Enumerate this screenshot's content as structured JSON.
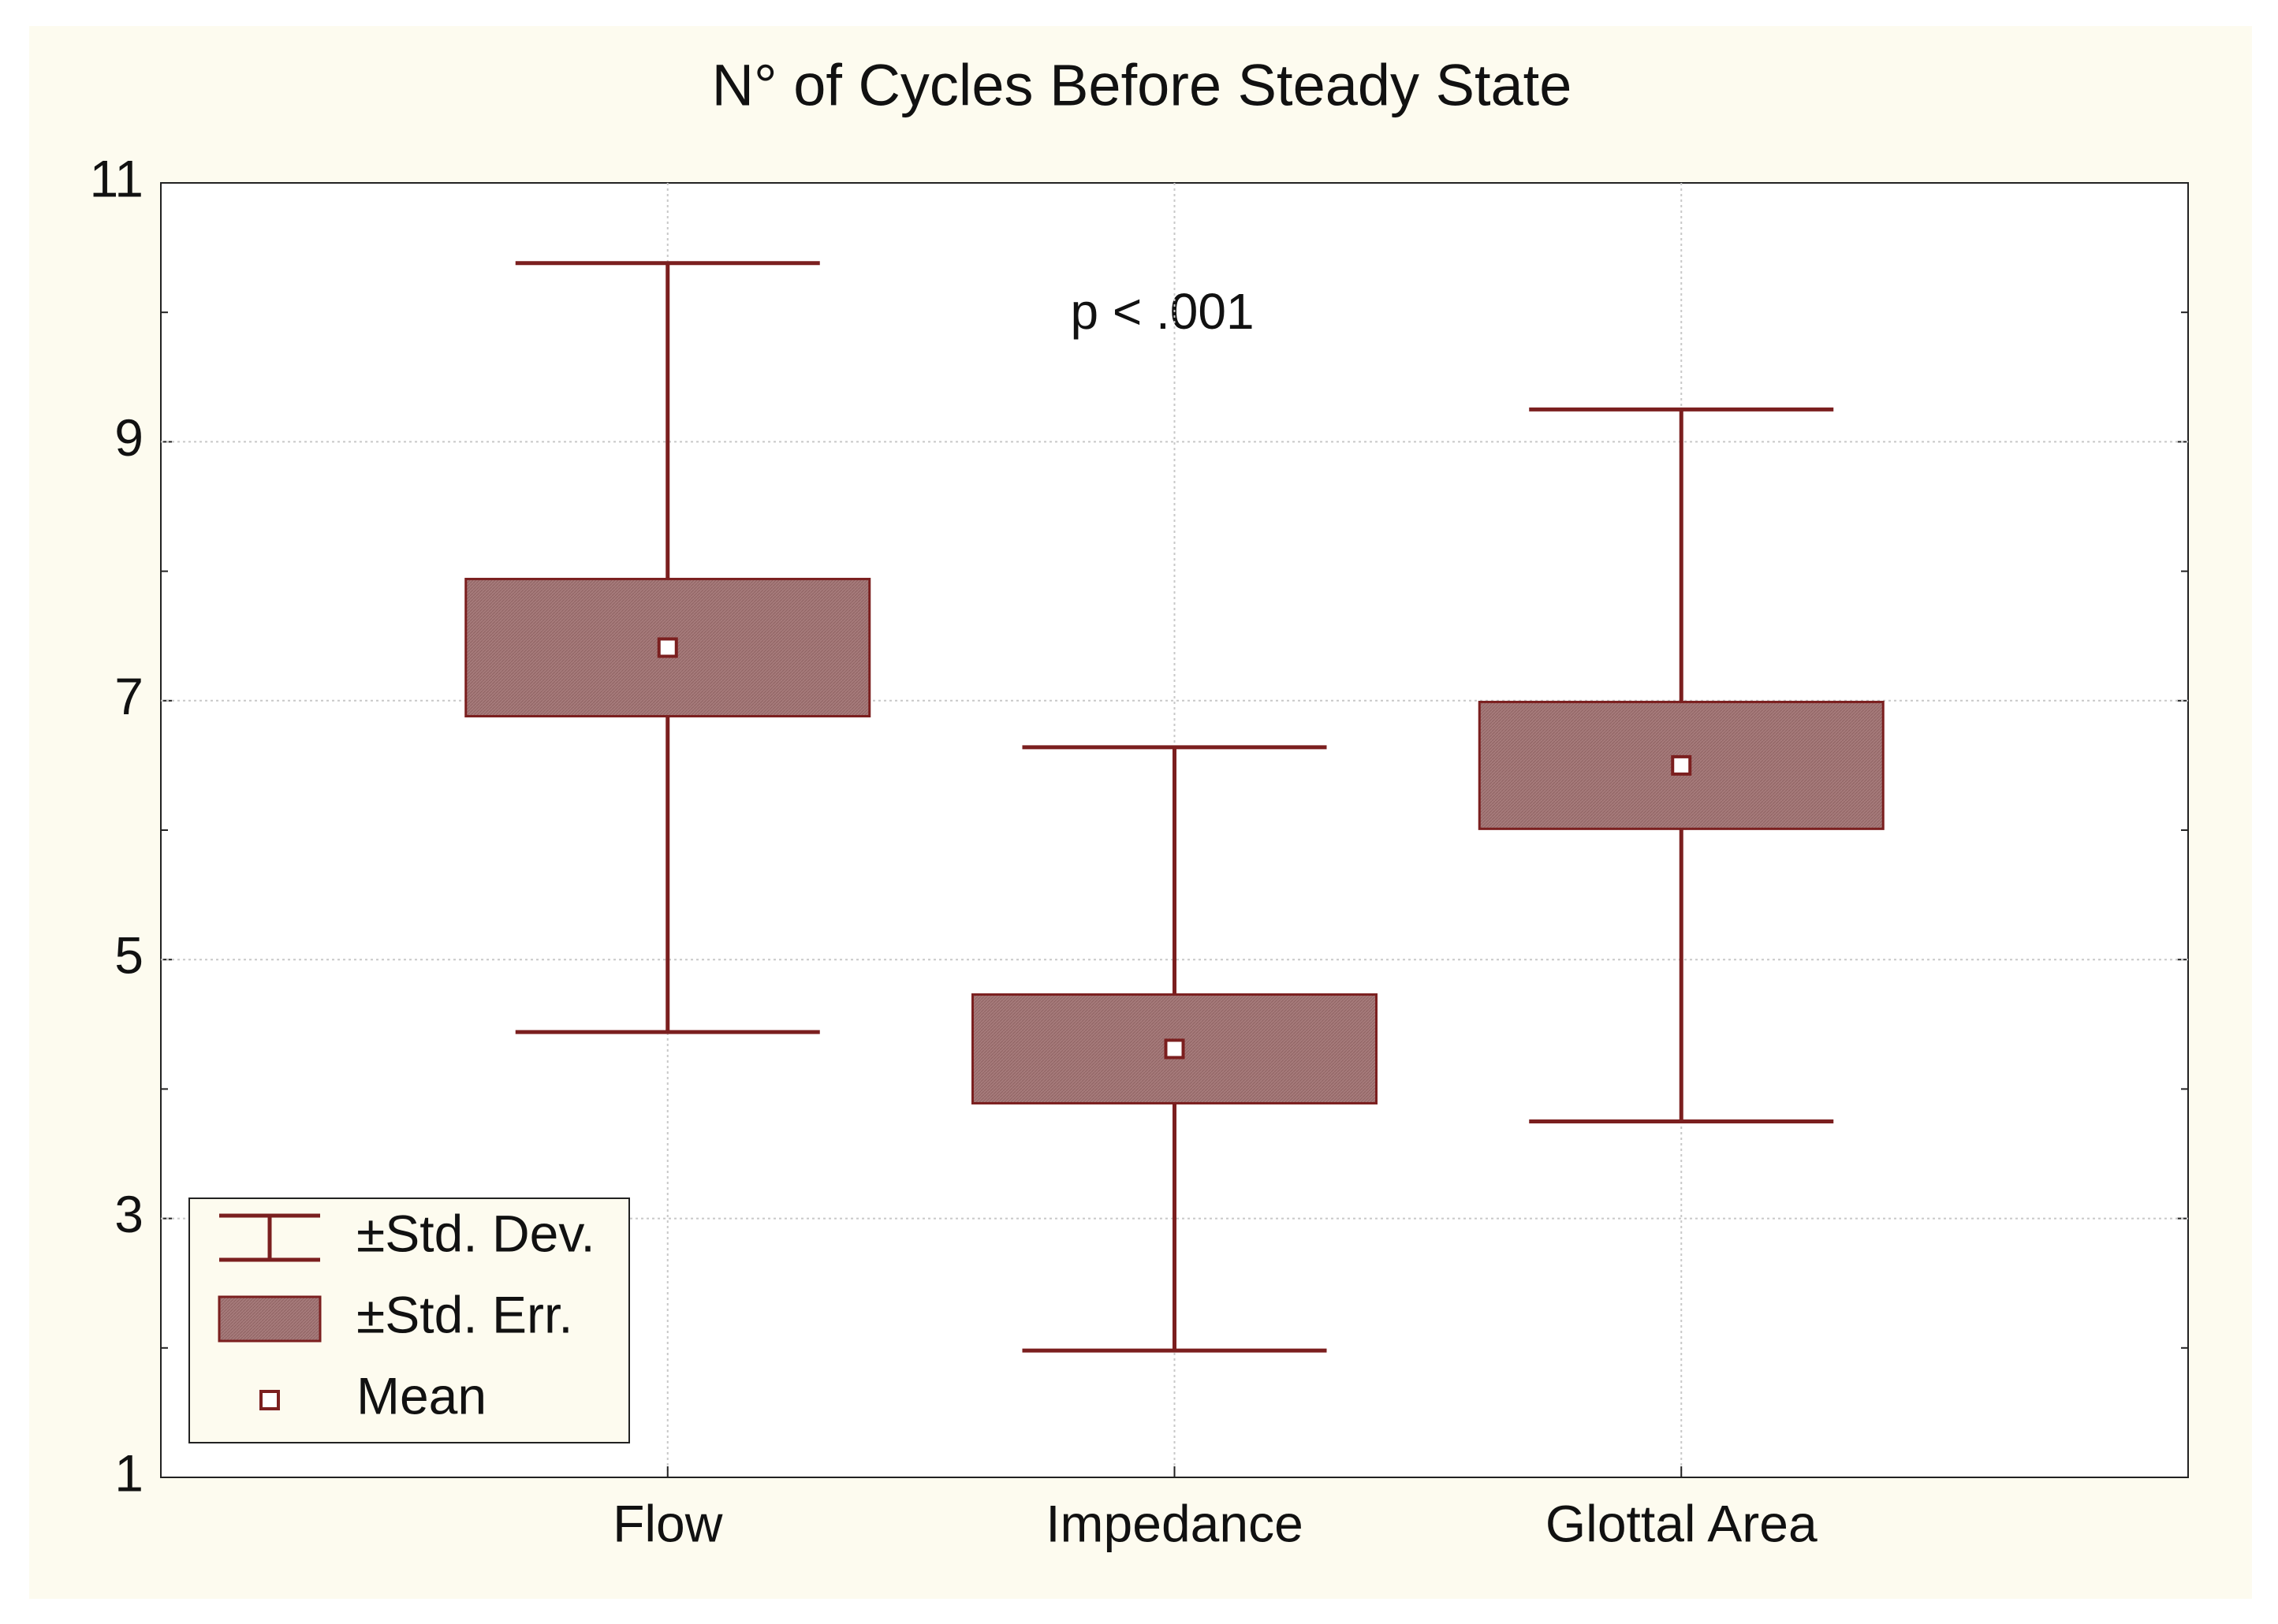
{
  "chart_data": {
    "type": "box",
    "title": "N° of Cycles Before Steady State",
    "annotation": "p < .001",
    "categories": [
      "Flow",
      "Impedance",
      "Glottal Area"
    ],
    "mean": {
      "name": "Mean",
      "values": [
        7.41,
        4.31,
        6.5
      ]
    },
    "std_err": {
      "name": "±Std. Err.",
      "values": [
        0.53,
        0.42,
        0.49
      ]
    },
    "std_dev": {
      "name": "±Std. Dev.",
      "values": [
        2.97,
        2.33,
        2.75
      ]
    },
    "color": "#7b1f1f",
    "box_color": "#a67b7b",
    "ylim": [
      1,
      11
    ],
    "yticks": [
      1,
      3,
      5,
      7,
      9,
      11
    ],
    "minor_yticks": [
      2,
      4,
      6,
      8,
      10
    ],
    "grid": true,
    "legend": "lower left"
  }
}
